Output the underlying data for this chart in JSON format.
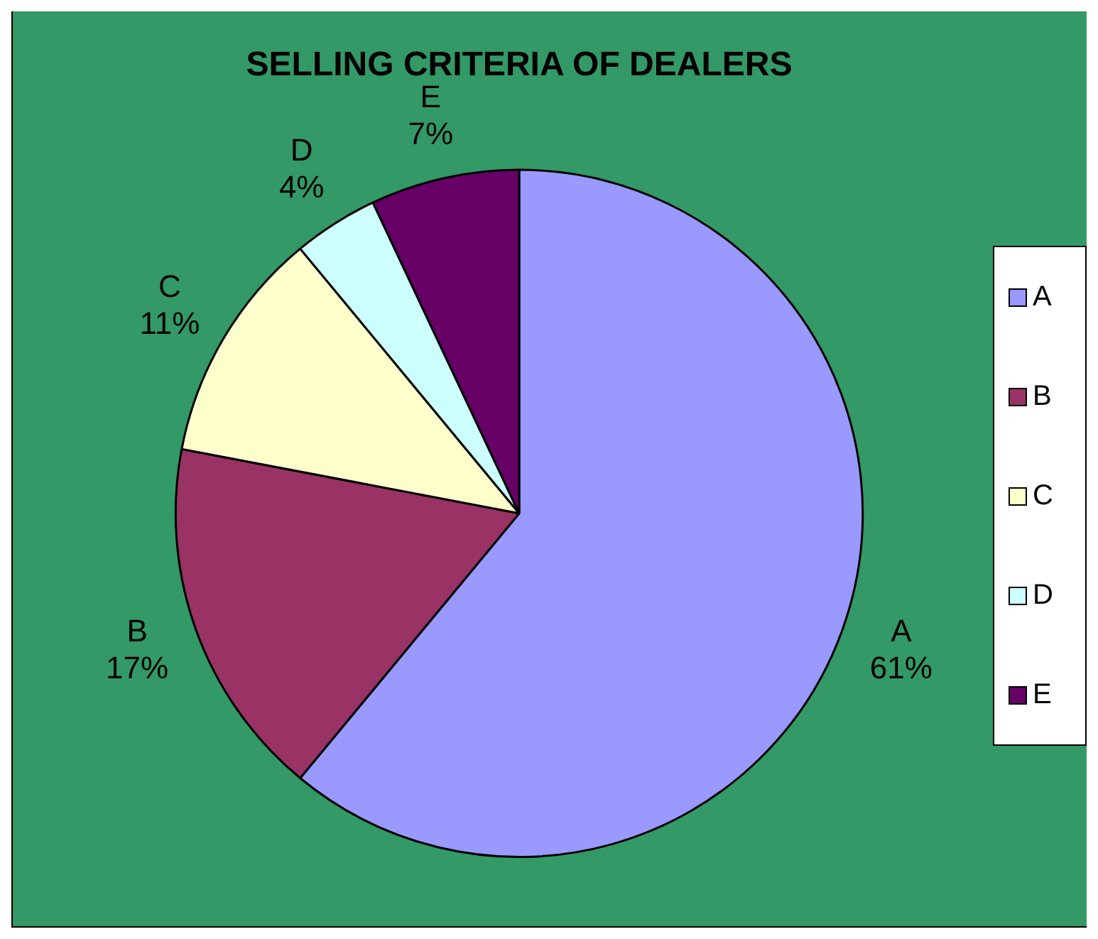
{
  "chart_data": {
    "type": "pie",
    "title": "SELLING CRITERIA OF DEALERS",
    "categories": [
      "A",
      "B",
      "C",
      "D",
      "E"
    ],
    "values": [
      61,
      17,
      11,
      4,
      7
    ],
    "value_labels": [
      "61%",
      "17%",
      "11%",
      "4%",
      "7%"
    ],
    "colors": [
      "#9999ff",
      "#993366",
      "#ffffcc",
      "#ccffff",
      "#660066"
    ],
    "legend": "right"
  }
}
